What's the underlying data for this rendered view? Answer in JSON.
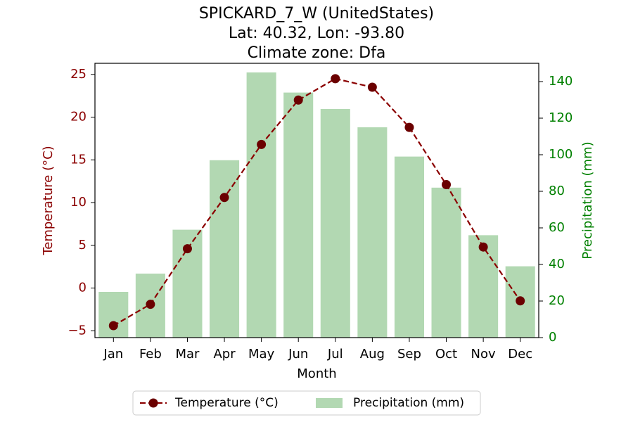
{
  "chart_data": {
    "type": "bar",
    "title_lines": [
      "SPICKARD_7_W (UnitedStates)",
      "Lat: 40.32, Lon: -93.80",
      "Climate zone: Dfa"
    ],
    "xlabel": "Month",
    "ylabel_left": "Temperature (°C)",
    "ylabel_right": "Precipitation (mm)",
    "categories": [
      "Jan",
      "Feb",
      "Mar",
      "Apr",
      "May",
      "Jun",
      "Jul",
      "Aug",
      "Sep",
      "Oct",
      "Nov",
      "Dec"
    ],
    "series": [
      {
        "name": "Precipitation (mm)",
        "kind": "bar",
        "axis": "right",
        "color": "#b2d8b2",
        "values": [
          25,
          35,
          59,
          97,
          145,
          134,
          125,
          115,
          99,
          82,
          56,
          39
        ]
      },
      {
        "name": "Temperature (°C)",
        "kind": "line",
        "axis": "left",
        "color": "#8b0000",
        "values": [
          -4.4,
          -1.9,
          4.6,
          10.6,
          16.8,
          22.0,
          24.5,
          23.5,
          18.8,
          12.1,
          4.8,
          -1.5
        ]
      }
    ],
    "ylim_left": [
      -5.8,
      26.3
    ],
    "yticks_left": [
      "−5",
      "0",
      "5",
      "10",
      "15",
      "20",
      "25"
    ],
    "ylim_right": [
      0,
      150
    ],
    "yticks_right": [
      "0",
      "20",
      "40",
      "60",
      "80",
      "100",
      "120",
      "140"
    ],
    "left_axis_color": "#8b0000",
    "right_axis_color": "#008000",
    "grid": false,
    "legend_position": "bottom-center"
  }
}
